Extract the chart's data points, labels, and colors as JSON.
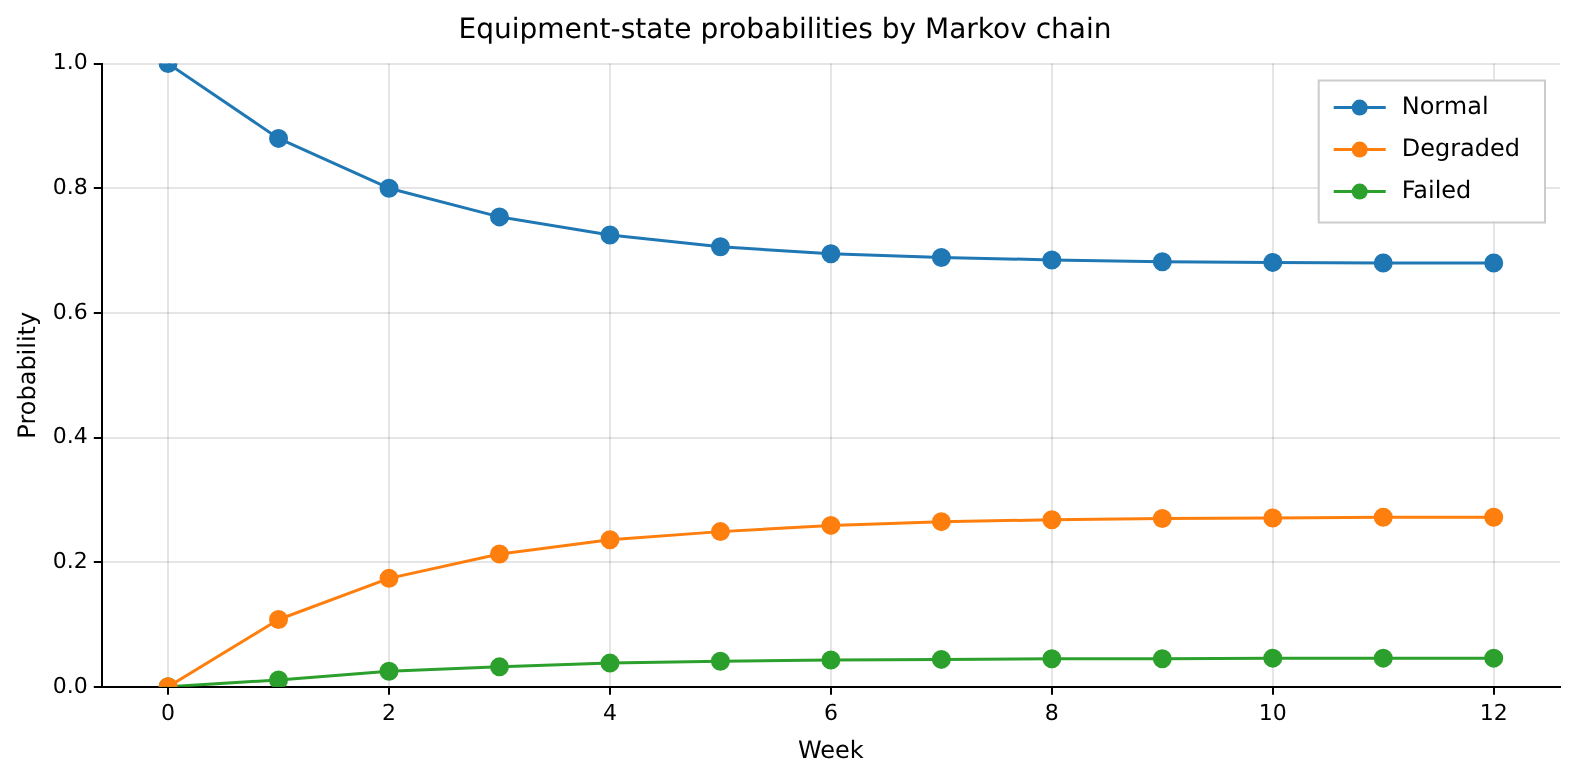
{
  "chart_data": {
    "type": "line",
    "title": "Equipment-state probabilities by Markov chain",
    "xlabel": "Week",
    "ylabel": "Probability",
    "x": [
      0,
      1,
      2,
      3,
      4,
      5,
      6,
      7,
      8,
      9,
      10,
      11,
      12
    ],
    "series": [
      {
        "name": "Normal",
        "color": "#1f77b4",
        "values": [
          1.0,
          0.88,
          0.8,
          0.754,
          0.725,
          0.706,
          0.695,
          0.689,
          0.685,
          0.682,
          0.681,
          0.68,
          0.68
        ]
      },
      {
        "name": "Degraded",
        "color": "#ff7f0e",
        "values": [
          0.0,
          0.108,
          0.174,
          0.213,
          0.236,
          0.249,
          0.259,
          0.265,
          0.268,
          0.27,
          0.271,
          0.272,
          0.272
        ]
      },
      {
        "name": "Failed",
        "color": "#2ca02c",
        "values": [
          0.0,
          0.011,
          0.025,
          0.032,
          0.038,
          0.041,
          0.043,
          0.044,
          0.045,
          0.045,
          0.046,
          0.046,
          0.046
        ]
      }
    ],
    "xlim": [
      -0.6,
      12.6
    ],
    "xticks": [
      0,
      2,
      4,
      6,
      8,
      10,
      12
    ],
    "ylim": [
      0,
      1
    ],
    "yticks": [
      {
        "value": 0,
        "label": "0.0"
      },
      {
        "value": 0.2,
        "label": "0.2"
      },
      {
        "value": 0.4,
        "label": "0.4"
      },
      {
        "value": 0.6,
        "label": "0.6"
      },
      {
        "value": 0.8,
        "label": "0.8"
      },
      {
        "value": 1,
        "label": "1.0"
      }
    ],
    "grid": true,
    "legend": "top right",
    "marker": "circle",
    "line_style": "solid"
  }
}
